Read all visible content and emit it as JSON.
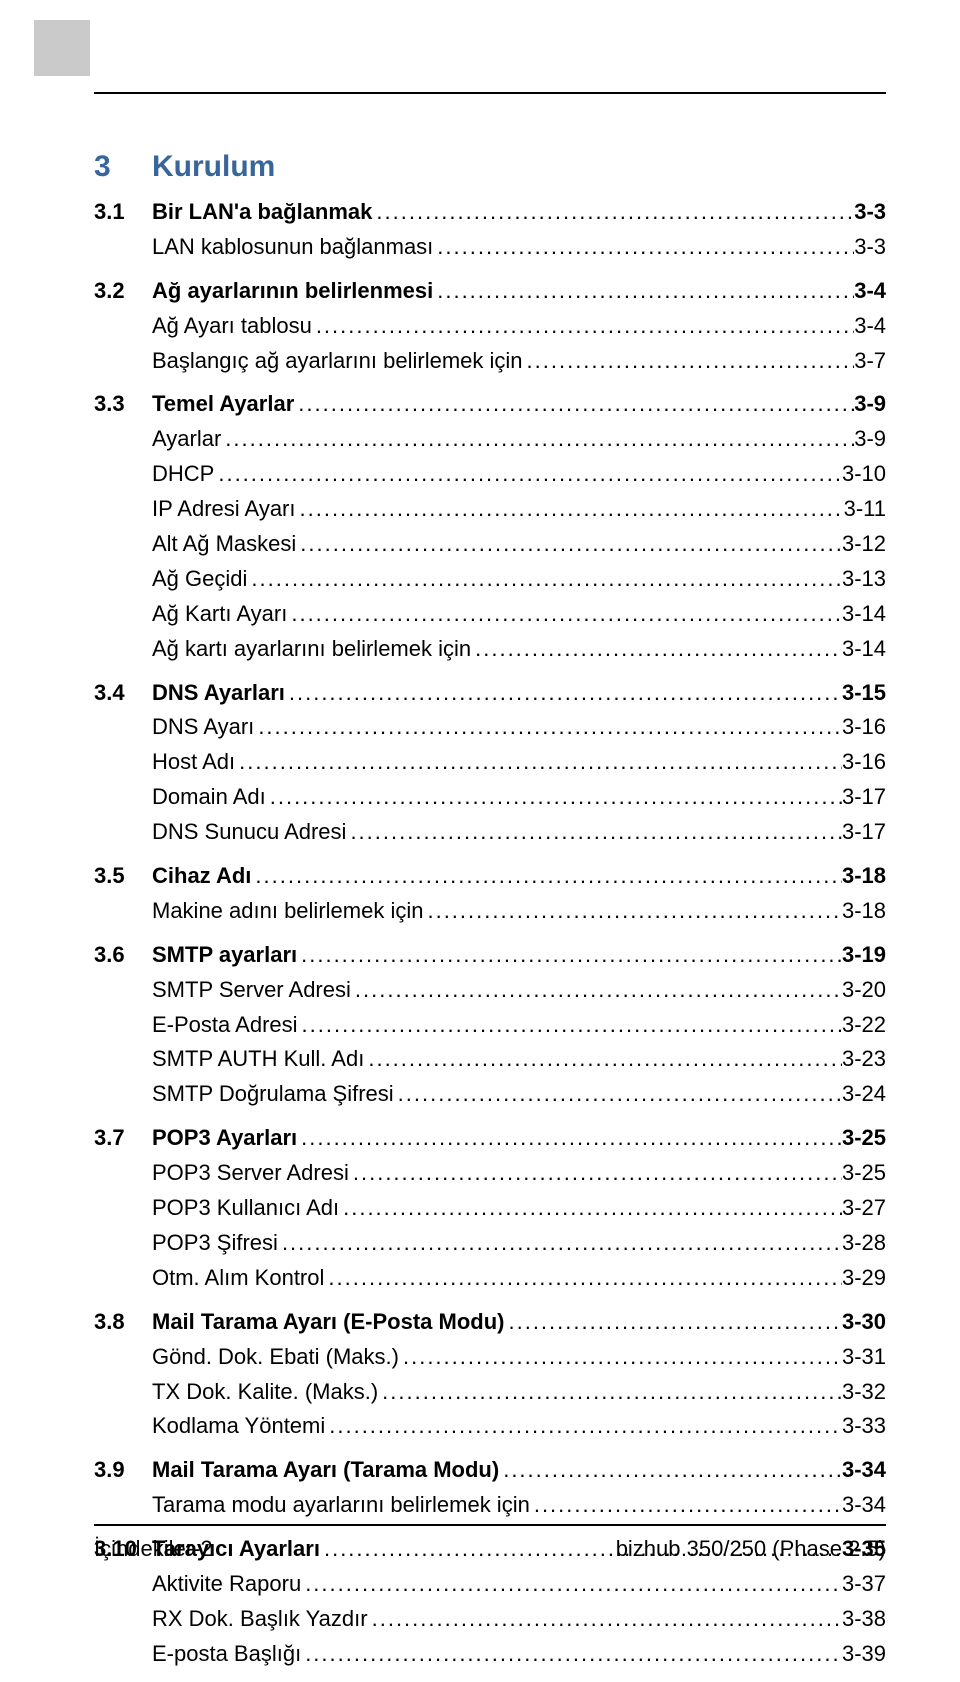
{
  "colors": {
    "accent": "#38659a",
    "tab": "#c9cac9",
    "text": "#000000",
    "bg": "#ffffff",
    "rule": "#000000"
  },
  "chapter": {
    "num": "3",
    "title": "Kurulum"
  },
  "sections": [
    {
      "num": "3.1",
      "title": "Bir LAN'a bağlanmak",
      "page": "3-3",
      "items": [
        {
          "label": "LAN kablosunun bağlanması",
          "page": "3-3"
        }
      ]
    },
    {
      "num": "3.2",
      "title": "Ağ ayarlarının belirlenmesi",
      "page": "3-4",
      "items": [
        {
          "label": "Ağ Ayarı tablosu",
          "page": "3-4"
        },
        {
          "label": "Başlangıç ağ ayarlarını belirlemek için",
          "page": "3-7"
        }
      ]
    },
    {
      "num": "3.3",
      "title": "Temel Ayarlar",
      "page": "3-9",
      "items": [
        {
          "label": "Ayarlar",
          "page": "3-9"
        },
        {
          "label": "DHCP",
          "page": "3-10"
        },
        {
          "label": "IP Adresi Ayarı",
          "page": "3-11"
        },
        {
          "label": "Alt Ağ Maskesi",
          "page": "3-12"
        },
        {
          "label": "Ağ Geçidi",
          "page": "3-13"
        },
        {
          "label": "Ağ Kartı Ayarı",
          "page": "3-14"
        },
        {
          "label": "Ağ kartı ayarlarını belirlemek için",
          "page": "3-14"
        }
      ]
    },
    {
      "num": "3.4",
      "title": "DNS Ayarları",
      "page": "3-15",
      "items": [
        {
          "label": "DNS Ayarı",
          "page": "3-16"
        },
        {
          "label": "Host Adı",
          "page": "3-16"
        },
        {
          "label": "Domain Adı",
          "page": "3-17"
        },
        {
          "label": "DNS Sunucu Adresi",
          "page": "3-17"
        }
      ]
    },
    {
      "num": "3.5",
      "title": "Cihaz Adı",
      "page": "3-18",
      "items": [
        {
          "label": "Makine adını belirlemek için",
          "page": "3-18"
        }
      ]
    },
    {
      "num": "3.6",
      "title": "SMTP ayarları",
      "page": "3-19",
      "items": [
        {
          "label": "SMTP Server Adresi",
          "page": "3-20"
        },
        {
          "label": "E-Posta Adresi",
          "page": "3-22"
        },
        {
          "label": "SMTP AUTH Kull. Adı",
          "page": "3-23"
        },
        {
          "label": "SMTP Doğrulama Şifresi",
          "page": "3-24"
        }
      ]
    },
    {
      "num": "3.7",
      "title": "POP3 Ayarları",
      "page": "3-25",
      "items": [
        {
          "label": "POP3 Server Adresi",
          "page": "3-25"
        },
        {
          "label": "POP3 Kullanıcı Adı",
          "page": "3-27"
        },
        {
          "label": "POP3 Şifresi",
          "page": "3-28"
        },
        {
          "label": "Otm. Alım Kontrol",
          "page": "3-29"
        }
      ]
    },
    {
      "num": "3.8",
      "title": "Mail Tarama Ayarı (E-Posta Modu)",
      "page": "3-30",
      "items": [
        {
          "label": "Gönd. Dok. Ebati (Maks.)",
          "page": "3-31"
        },
        {
          "label": "TX Dok. Kalite. (Maks.)",
          "page": "3-32"
        },
        {
          "label": "Kodlama Yöntemi",
          "page": "3-33"
        }
      ]
    },
    {
      "num": "3.9",
      "title": "Mail Tarama Ayarı (Tarama Modu)",
      "page": "3-34",
      "items": [
        {
          "label": "Tarama modu ayarlarını belirlemek için",
          "page": "3-34"
        }
      ]
    },
    {
      "num": "3.10",
      "title": "Tarayıcı Ayarları",
      "page": "3-35",
      "items": [
        {
          "label": "Aktivite Raporu",
          "page": "3-37"
        },
        {
          "label": "RX Dok. Başlık Yazdır",
          "page": "3-38"
        },
        {
          "label": "E-posta Başlığı",
          "page": "3-39"
        }
      ]
    }
  ],
  "footer": {
    "left": "İçindekiler-2",
    "right": "bizhub 350/250 (Phase 2.5)"
  }
}
